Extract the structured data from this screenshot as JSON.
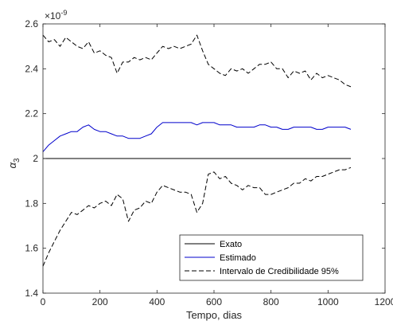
{
  "chart_data": {
    "type": "line",
    "xlabel": "Tempo, dias",
    "ylabel_base": "α",
    "ylabel_sub": "3",
    "multiplier_base": "×10",
    "multiplier_exp": "-9",
    "xlim": [
      0,
      1200
    ],
    "ylim": [
      1.4,
      2.6
    ],
    "xticks": [
      0,
      200,
      400,
      600,
      800,
      1000,
      1200
    ],
    "yticks": [
      1.4,
      1.6,
      1.8,
      2,
      2.2,
      2.4,
      2.6
    ],
    "xtick_labels": [
      "0",
      "200",
      "400",
      "600",
      "800",
      "1000",
      "1200"
    ],
    "ytick_labels": [
      "1.4",
      "1.6",
      "1.8",
      "2",
      "2.2",
      "2.4",
      "2.6"
    ],
    "grid": false,
    "legend_position": "bottom-right",
    "colors": {
      "exact": "#000000",
      "estimated": "#0000cc",
      "credibility": "#000000"
    },
    "series": [
      {
        "name": "Exato",
        "style": "solid",
        "x": [
          0,
          1080
        ],
        "y": [
          2.0,
          2.0
        ]
      },
      {
        "name": "Estimado",
        "style": "solid",
        "x": [
          0,
          20,
          40,
          60,
          80,
          100,
          120,
          140,
          160,
          180,
          200,
          220,
          240,
          260,
          280,
          300,
          320,
          340,
          360,
          380,
          400,
          420,
          440,
          460,
          480,
          500,
          520,
          540,
          560,
          580,
          600,
          620,
          640,
          660,
          680,
          700,
          720,
          740,
          760,
          780,
          800,
          820,
          840,
          860,
          880,
          900,
          920,
          940,
          960,
          980,
          1000,
          1020,
          1040,
          1060,
          1080
        ],
        "y": [
          2.03,
          2.06,
          2.08,
          2.1,
          2.11,
          2.12,
          2.12,
          2.14,
          2.15,
          2.13,
          2.12,
          2.12,
          2.11,
          2.1,
          2.1,
          2.09,
          2.09,
          2.09,
          2.1,
          2.11,
          2.14,
          2.16,
          2.16,
          2.16,
          2.16,
          2.16,
          2.16,
          2.15,
          2.16,
          2.16,
          2.16,
          2.15,
          2.15,
          2.15,
          2.14,
          2.14,
          2.14,
          2.14,
          2.15,
          2.15,
          2.14,
          2.14,
          2.13,
          2.13,
          2.14,
          2.14,
          2.14,
          2.14,
          2.13,
          2.13,
          2.14,
          2.14,
          2.14,
          2.14,
          2.13
        ]
      },
      {
        "name": "Intervalo de Credibilidade 95%",
        "style": "dashed",
        "x": [
          0,
          20,
          40,
          60,
          80,
          100,
          120,
          140,
          160,
          180,
          200,
          220,
          240,
          260,
          280,
          300,
          320,
          340,
          360,
          380,
          400,
          420,
          440,
          460,
          480,
          500,
          520,
          540,
          560,
          580,
          600,
          620,
          640,
          660,
          680,
          700,
          720,
          740,
          760,
          780,
          800,
          820,
          840,
          860,
          880,
          900,
          920,
          940,
          960,
          980,
          1000,
          1020,
          1040,
          1060,
          1080
        ],
        "y": [
          2.55,
          2.52,
          2.53,
          2.5,
          2.54,
          2.52,
          2.5,
          2.49,
          2.52,
          2.47,
          2.48,
          2.46,
          2.45,
          2.38,
          2.43,
          2.43,
          2.45,
          2.44,
          2.45,
          2.44,
          2.47,
          2.5,
          2.49,
          2.5,
          2.49,
          2.5,
          2.51,
          2.55,
          2.48,
          2.42,
          2.4,
          2.38,
          2.37,
          2.4,
          2.39,
          2.4,
          2.38,
          2.4,
          2.42,
          2.42,
          2.43,
          2.4,
          2.4,
          2.36,
          2.39,
          2.38,
          2.39,
          2.35,
          2.38,
          2.36,
          2.37,
          2.36,
          2.35,
          2.33,
          2.32
        ]
      },
      {
        "name": "",
        "style": "dashed",
        "x": [
          0,
          20,
          40,
          60,
          80,
          100,
          120,
          140,
          160,
          180,
          200,
          220,
          240,
          260,
          280,
          300,
          320,
          340,
          360,
          380,
          400,
          420,
          440,
          460,
          480,
          500,
          520,
          540,
          560,
          580,
          600,
          620,
          640,
          660,
          680,
          700,
          720,
          740,
          760,
          780,
          800,
          820,
          840,
          860,
          880,
          900,
          920,
          940,
          960,
          980,
          1000,
          1020,
          1040,
          1060,
          1080
        ],
        "y": [
          1.52,
          1.58,
          1.63,
          1.68,
          1.72,
          1.76,
          1.75,
          1.77,
          1.79,
          1.78,
          1.8,
          1.81,
          1.79,
          1.84,
          1.82,
          1.72,
          1.77,
          1.78,
          1.81,
          1.8,
          1.85,
          1.88,
          1.87,
          1.86,
          1.85,
          1.85,
          1.84,
          1.76,
          1.8,
          1.93,
          1.94,
          1.91,
          1.92,
          1.89,
          1.88,
          1.86,
          1.88,
          1.87,
          1.87,
          1.84,
          1.84,
          1.85,
          1.86,
          1.87,
          1.89,
          1.89,
          1.91,
          1.9,
          1.92,
          1.92,
          1.93,
          1.94,
          1.95,
          1.95,
          1.96
        ]
      }
    ]
  }
}
